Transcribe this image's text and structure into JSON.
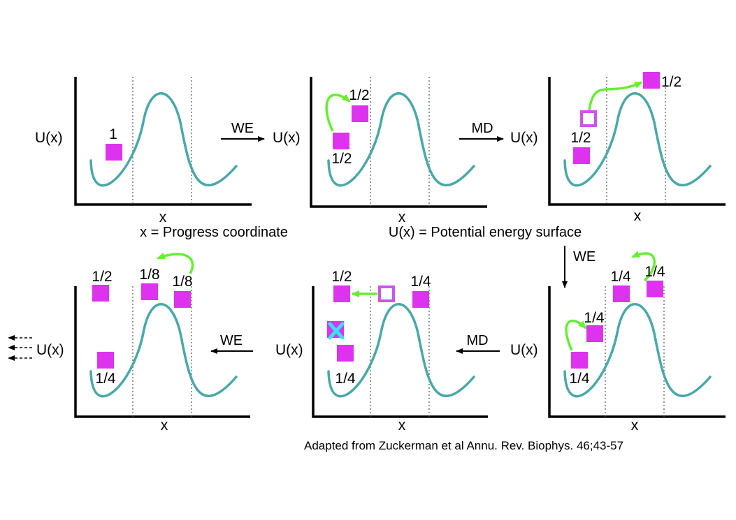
{
  "labels": {
    "energy": "U(x)",
    "coord": "x"
  },
  "captions": {
    "progress": "x = Progress coordinate",
    "potential": "U(x) = Potential energy surface",
    "source": "Adapted from Zuckerman et al Annu. Rev. Biophys. 46;43-57"
  },
  "steps": {
    "we": "WE",
    "md": "MD"
  },
  "weights": {
    "p1_w1": "1",
    "p2_w1": "1/2",
    "p2_w2": "1/2",
    "p3_w1": "1/2",
    "p3_w2": "1/2",
    "p4_w1": "1/4",
    "p4_w2": "1/4",
    "p4_w3": "1/4",
    "p4_w4": "1/4",
    "p5_w1": "1/2",
    "p5_w2": "1/4",
    "p5_w3": "1/4",
    "p6_w1": "1/2",
    "p6_w2": "1/8",
    "p6_w3": "1/8",
    "p6_w4": "1/4"
  },
  "colors": {
    "walker": "#dd33ee",
    "curve": "#4aa8a8",
    "move_arrow": "#66ee33",
    "pruned_mark": "#33e6ee"
  }
}
